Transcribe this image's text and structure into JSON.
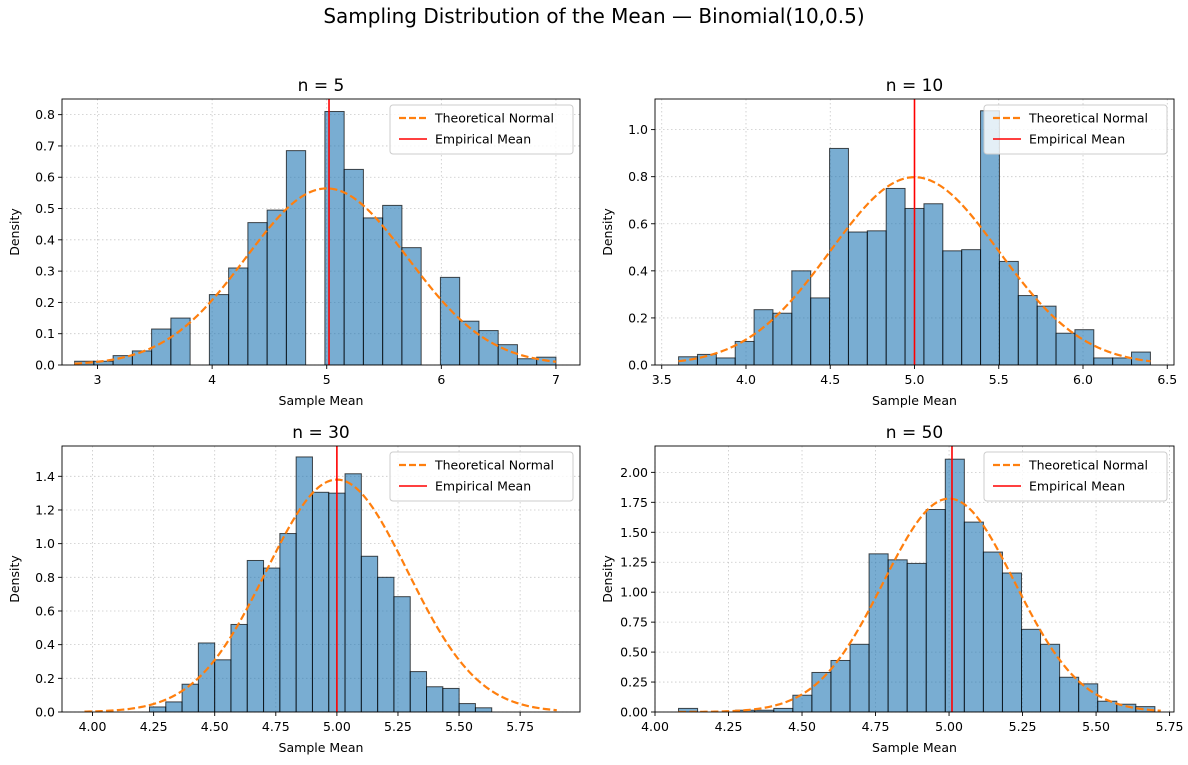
{
  "figure": {
    "suptitle": "Sampling Distribution of the Mean — Binomial(10,0.5)"
  },
  "colors": {
    "bar_fill": "#1f77b4",
    "bar_edge": "#000000",
    "normal_curve": "#ff7f0e",
    "mean_line": "#ff0000",
    "grid": "#b0b0b0"
  },
  "chart_data": [
    {
      "type": "bar",
      "title": "n = 5",
      "xlabel": "Sample Mean",
      "ylabel": "Density",
      "legend": {
        "position": "top-right",
        "entries": [
          "Theoretical Normal",
          "Empirical Mean"
        ]
      },
      "grid": true,
      "xlim": [
        2.69,
        7.21
      ],
      "ylim": [
        0,
        0.85
      ],
      "xticks": [
        3,
        4,
        5,
        6,
        7
      ],
      "xtick_labels": [
        "3",
        "4",
        "5",
        "6",
        "7"
      ],
      "yticks": [
        0,
        0.1,
        0.2,
        0.3,
        0.4,
        0.5,
        0.6,
        0.7,
        0.8
      ],
      "ytick_labels": [
        "0.0",
        "0.1",
        "0.2",
        "0.3",
        "0.4",
        "0.5",
        "0.6",
        "0.7",
        "0.8"
      ],
      "bin_start": 2.8,
      "bin_width": 0.168,
      "densities": [
        0.012,
        0.012,
        0.03,
        0.045,
        0.115,
        0.15,
        0,
        0.225,
        0.31,
        0.455,
        0.495,
        0.685,
        0,
        0.81,
        0.625,
        0.47,
        0.51,
        0.375,
        0,
        0.28,
        0.14,
        0.11,
        0.065,
        0.02,
        0.025
      ],
      "normal": {
        "mean": 5.0,
        "sd": 0.707,
        "x_range": [
          2.8,
          7.0
        ]
      },
      "empirical_mean": 5.02
    },
    {
      "type": "bar",
      "title": "n = 10",
      "xlabel": "Sample Mean",
      "ylabel": "Density",
      "legend": {
        "position": "top-right",
        "entries": [
          "Theoretical Normal",
          "Empirical Mean"
        ]
      },
      "grid": true,
      "xlim": [
        3.46,
        6.54
      ],
      "ylim": [
        0,
        1.13
      ],
      "xticks": [
        3.5,
        4.0,
        4.5,
        5.0,
        5.5,
        6.0,
        6.5
      ],
      "xtick_labels": [
        "3.5",
        "4.0",
        "4.5",
        "5.0",
        "5.5",
        "6.0",
        "6.5"
      ],
      "yticks": [
        0,
        0.2,
        0.4,
        0.6,
        0.8,
        1.0
      ],
      "ytick_labels": [
        "0.0",
        "0.2",
        "0.4",
        "0.6",
        "0.8",
        "1.0"
      ],
      "bin_start": 3.6,
      "bin_width": 0.112,
      "densities": [
        0.035,
        0.045,
        0.03,
        0.1,
        0.235,
        0.22,
        0.4,
        0.285,
        0.92,
        0.565,
        0.57,
        0.75,
        0.665,
        0.685,
        0.485,
        0.49,
        1.08,
        0.44,
        0.295,
        0.25,
        0.135,
        0.15,
        0.03,
        0.03,
        0.055
      ],
      "normal": {
        "mean": 5.0,
        "sd": 0.5,
        "x_range": [
          3.6,
          6.4
        ]
      },
      "empirical_mean": 5.0
    },
    {
      "type": "bar",
      "title": "n = 30",
      "xlabel": "Sample Mean",
      "ylabel": "Density",
      "legend": {
        "position": "top-right",
        "entries": [
          "Theoretical Normal",
          "Empirical Mean"
        ]
      },
      "grid": true,
      "xlim": [
        3.875,
        5.995
      ],
      "ylim": [
        0,
        1.58
      ],
      "xticks": [
        4.0,
        4.25,
        4.5,
        4.75,
        5.0,
        5.25,
        5.5,
        5.75
      ],
      "xtick_labels": [
        "4.00",
        "4.25",
        "4.50",
        "4.75",
        "5.00",
        "5.25",
        "5.50",
        "5.75"
      ],
      "yticks": [
        0,
        0.2,
        0.4,
        0.6,
        0.8,
        1.0,
        1.2,
        1.4
      ],
      "ytick_labels": [
        "0.0",
        "0.2",
        "0.4",
        "0.6",
        "0.8",
        "1.0",
        "1.2",
        "1.4"
      ],
      "bin_start": 4.233,
      "bin_width": 0.0667,
      "densities": [
        0.03,
        0.06,
        0.165,
        0.41,
        0.31,
        0.52,
        0.9,
        0.855,
        1.06,
        1.515,
        1.305,
        1.3,
        1.415,
        0.925,
        0.8,
        0.685,
        0.24,
        0.15,
        0.14,
        0.05,
        0.025
      ],
      "normal": {
        "mean": 5.0,
        "sd": 0.289,
        "x_range": [
          3.967,
          5.9
        ]
      },
      "empirical_mean": 5.0
    },
    {
      "type": "bar",
      "title": "n = 50",
      "xlabel": "Sample Mean",
      "ylabel": "Density",
      "legend": {
        "position": "top-right",
        "entries": [
          "Theoretical Normal",
          "Empirical Mean"
        ]
      },
      "grid": true,
      "xlim": [
        4.0,
        5.765
      ],
      "ylim": [
        0,
        2.22
      ],
      "xticks": [
        4.0,
        4.25,
        4.5,
        4.75,
        5.0,
        5.25,
        5.5,
        5.75
      ],
      "xtick_labels": [
        "4.00",
        "4.25",
        "4.50",
        "4.75",
        "5.00",
        "5.25",
        "5.50",
        "5.75"
      ],
      "yticks": [
        0,
        0.25,
        0.5,
        0.75,
        1.0,
        1.25,
        1.5,
        1.75,
        2.0
      ],
      "ytick_labels": [
        "0.00",
        "0.25",
        "0.50",
        "0.75",
        "1.00",
        "1.25",
        "1.50",
        "1.75",
        "2.00"
      ],
      "bin_start": 4.08,
      "bin_width": 0.0648,
      "densities": [
        0.03,
        0,
        0,
        0.015,
        0.015,
        0.03,
        0.14,
        0.33,
        0.43,
        0.565,
        1.32,
        1.27,
        1.24,
        1.69,
        2.11,
        1.585,
        1.335,
        1.16,
        0.69,
        0.565,
        0.29,
        0.235,
        0.09,
        0.065,
        0.045
      ],
      "normal": {
        "mean": 5.0,
        "sd": 0.224,
        "x_range": [
          4.08,
          5.72
        ]
      },
      "empirical_mean": 5.01
    }
  ]
}
